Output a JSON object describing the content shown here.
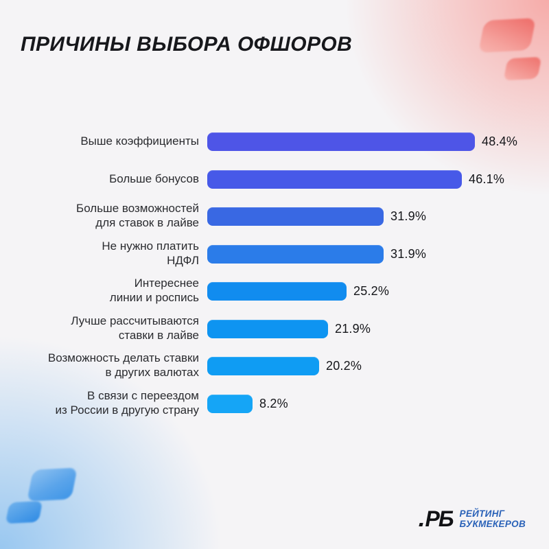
{
  "title": "ПРИЧИНЫ ВЫБОРА ОФШОРОВ",
  "chart_data": {
    "type": "bar",
    "orientation": "horizontal",
    "title": "ПРИЧИНЫ ВЫБОРА ОФШОРОВ",
    "unit": "%",
    "xlim": [
      0,
      50
    ],
    "grid": false,
    "legend": "none",
    "categories": [
      "Выше коэффициенты",
      "Больше бонусов",
      "Больше возможностей\nдля ставок в лайве",
      "Не нужно платить\nНДФЛ",
      "Интереснее\nлинии и роспись",
      "Лучше рассчитываются\nставки в лайве",
      "Возможность делать ставки\nв других валютах",
      "В связи с переездом\nиз России в другую страну"
    ],
    "values": [
      48.4,
      46.1,
      31.9,
      31.9,
      25.2,
      21.9,
      20.2,
      8.2
    ],
    "value_labels": [
      "48.4%",
      "46.1%",
      "31.9%",
      "31.9%",
      "25.2%",
      "21.9%",
      "20.2%",
      "8.2%"
    ],
    "bar_colors": [
      "#4E55E7",
      "#4759E8",
      "#3968E3",
      "#2B7CE9",
      "#118CEF",
      "#0E94F1",
      "#0F9CF3",
      "#15A5F6"
    ]
  },
  "logo": {
    "mark": "РБ",
    "line1": "РЕЙТИНГ",
    "line2": "БУКМЕКЕРОВ",
    "text_color": "#2A62B8"
  },
  "colors": {
    "background": "#F5F4F6",
    "title_text": "#17181C",
    "label_text": "#2A2B2F",
    "value_text": "#141519",
    "corner_pink": "#F2766F",
    "corner_blue": "#3E95E7"
  }
}
